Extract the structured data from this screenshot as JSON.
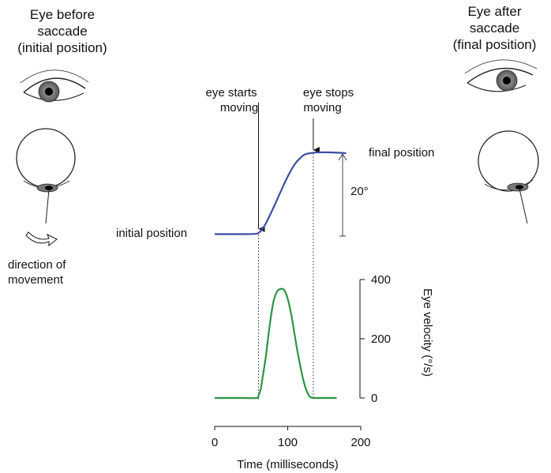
{
  "left_eye": {
    "title_lines": [
      "Eye before",
      "saccade",
      "(initial position)"
    ],
    "direction_lines": [
      "direction of",
      "movement"
    ]
  },
  "right_eye": {
    "title_lines": [
      "Eye after",
      "saccade",
      "(final position)"
    ]
  },
  "annotations": {
    "starts_lines": [
      "eye starts",
      "moving"
    ],
    "stops_lines": [
      "eye stops",
      "moving"
    ],
    "initial_position": "initial position",
    "final_position": "final position",
    "amplitude": "20°"
  },
  "chart_data": [
    {
      "type": "line",
      "name": "eye-position",
      "x_unit": "milliseconds",
      "y_unit": "degrees",
      "x": [
        0,
        20,
        40,
        55,
        60,
        65,
        70,
        80,
        90,
        100,
        110,
        120,
        125,
        130,
        135,
        140,
        160,
        180
      ],
      "y": [
        0,
        0,
        0,
        0.05,
        0.3,
        1.2,
        2.6,
        6.3,
        10.3,
        14.1,
        17.2,
        19.1,
        19.6,
        19.8,
        19.9,
        20,
        20,
        19.8
      ],
      "colors": {
        "line": "#3b4ea3"
      }
    },
    {
      "type": "line",
      "name": "eye-velocity",
      "x": [
        0,
        20,
        40,
        58,
        60,
        63,
        65,
        70,
        75,
        80,
        85,
        90,
        95,
        100,
        105,
        110,
        115,
        120,
        125,
        130,
        135,
        140,
        150,
        167
      ],
      "y": [
        0,
        0,
        0,
        0,
        8,
        30,
        60,
        140,
        240,
        320,
        358,
        368,
        365,
        335,
        280,
        205,
        135,
        75,
        30,
        5,
        0,
        0,
        0,
        0
      ],
      "ylabel": "Eye velocity (°/s)",
      "yticks": [
        0,
        200,
        400
      ],
      "xlabel": "Time (milliseconds)",
      "xticks": [
        0,
        100,
        200
      ],
      "xlim": [
        0,
        200
      ],
      "ylim": [
        0,
        400
      ],
      "colors": {
        "line": "#2e9444"
      }
    }
  ],
  "markers": {
    "start_ms": 60,
    "stop_ms": 135
  }
}
